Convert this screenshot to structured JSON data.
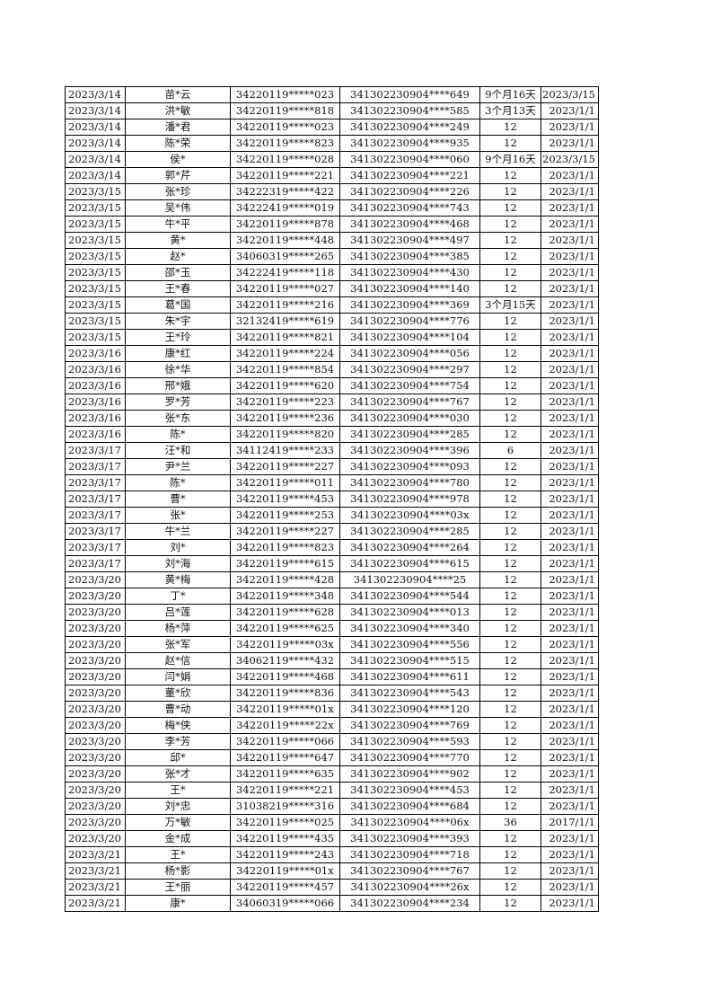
{
  "rows": [
    [
      "2023/3/14",
      "苗*云",
      "34220119*****023",
      "341302230904****649",
      "9个月16天",
      "2023/3/15"
    ],
    [
      "2023/3/14",
      "洪*敏",
      "34220119*****818",
      "341302230904****585",
      "3个月13天",
      "2023/1/1"
    ],
    [
      "2023/3/14",
      "潘*君",
      "34220119*****023",
      "341302230904****249",
      "12",
      "2023/1/1"
    ],
    [
      "2023/3/14",
      "陈*荣",
      "34220119*****823",
      "341302230904****935",
      "12",
      "2023/1/1"
    ],
    [
      "2023/3/14",
      "侯*",
      "34220119*****028",
      "341302230904****060",
      "9个月16天",
      "2023/3/15"
    ],
    [
      "2023/3/14",
      "郭*芹",
      "34220119*****221",
      "341302230904****221",
      "12",
      "2023/1/1"
    ],
    [
      "2023/3/15",
      "张*珍",
      "34222319*****422",
      "341302230904****226",
      "12",
      "2023/1/1"
    ],
    [
      "2023/3/15",
      "吴*伟",
      "34222419*****019",
      "341302230904****743",
      "12",
      "2023/1/1"
    ],
    [
      "2023/3/15",
      "牛*平",
      "34220119*****878",
      "341302230904****468",
      "12",
      "2023/1/1"
    ],
    [
      "2023/3/15",
      "黄*",
      "34220119*****448",
      "341302230904****497",
      "12",
      "2023/1/1"
    ],
    [
      "2023/3/15",
      "赵*",
      "34060319*****265",
      "341302230904****385",
      "12",
      "2023/1/1"
    ],
    [
      "2023/3/15",
      "邵*玉",
      "34222419*****118",
      "341302230904****430",
      "12",
      "2023/1/1"
    ],
    [
      "2023/3/15",
      "王*春",
      "34220119*****027",
      "341302230904****140",
      "12",
      "2023/1/1"
    ],
    [
      "2023/3/15",
      "葛*国",
      "34220119*****216",
      "341302230904****369",
      "3个月15天",
      "2023/1/1"
    ],
    [
      "2023/3/15",
      "朱*宇",
      "32132419*****619",
      "341302230904****776",
      "12",
      "2023/1/1"
    ],
    [
      "2023/3/15",
      "王*玲",
      "34220119*****821",
      "341302230904****104",
      "12",
      "2023/1/1"
    ],
    [
      "2023/3/16",
      "康*红",
      "34220119*****224",
      "341302230904****056",
      "12",
      "2023/1/1"
    ],
    [
      "2023/3/16",
      "徐*华",
      "34220119*****854",
      "341302230904****297",
      "12",
      "2023/1/1"
    ],
    [
      "2023/3/16",
      "邢*娥",
      "34220119*****620",
      "341302230904****754",
      "12",
      "2023/1/1"
    ],
    [
      "2023/3/16",
      "罗*芳",
      "34220119*****223",
      "341302230904****767",
      "12",
      "2023/1/1"
    ],
    [
      "2023/3/16",
      "张*东",
      "34220119*****236",
      "341302230904****030",
      "12",
      "2023/1/1"
    ],
    [
      "2023/3/16",
      "陈*",
      "34220119*****820",
      "341302230904****285",
      "12",
      "2023/1/1"
    ],
    [
      "2023/3/17",
      "汪*和",
      "34112419*****233",
      "341302230904****396",
      "6",
      "2023/1/1"
    ],
    [
      "2023/3/17",
      "尹*兰",
      "34220119*****227",
      "341302230904****093",
      "12",
      "2023/1/1"
    ],
    [
      "2023/3/17",
      "陈*",
      "34220119*****011",
      "341302230904****780",
      "12",
      "2023/1/1"
    ],
    [
      "2023/3/17",
      "曹*",
      "34220119*****453",
      "341302230904****978",
      "12",
      "2023/1/1"
    ],
    [
      "2023/3/17",
      "张*",
      "34220119*****253",
      "341302230904****03x",
      "12",
      "2023/1/1"
    ],
    [
      "2023/3/17",
      "牛*兰",
      "34220119*****227",
      "341302230904****285",
      "12",
      "2023/1/1"
    ],
    [
      "2023/3/17",
      "刘*",
      "34220119*****823",
      "341302230904****264",
      "12",
      "2023/1/1"
    ],
    [
      "2023/3/17",
      "刘*海",
      "34220119*****615",
      "341302230904****615",
      "12",
      "2023/1/1"
    ],
    [
      "2023/3/20",
      "黄*梅",
      "34220119*****428",
      "341302230904****25",
      "12",
      "2023/1/1"
    ],
    [
      "2023/3/20",
      "丁*",
      "34220119*****348",
      "341302230904****544",
      "12",
      "2023/1/1"
    ],
    [
      "2023/3/20",
      "吕*莲",
      "34220119*****628",
      "341302230904****013",
      "12",
      "2023/1/1"
    ],
    [
      "2023/3/20",
      "杨*萍",
      "34220119*****625",
      "341302230904****340",
      "12",
      "2023/1/1"
    ],
    [
      "2023/3/20",
      "张*军",
      "34220119*****03x",
      "341302230904****556",
      "12",
      "2023/1/1"
    ],
    [
      "2023/3/20",
      "赵*信",
      "34062119*****432",
      "341302230904****515",
      "12",
      "2023/1/1"
    ],
    [
      "2023/3/20",
      "闫*娟",
      "34220119*****468",
      "341302230904****611",
      "12",
      "2023/1/1"
    ],
    [
      "2023/3/20",
      "董*欣",
      "34220119*****836",
      "341302230904****543",
      "12",
      "2023/1/1"
    ],
    [
      "2023/3/20",
      "曹*动",
      "34220119*****01x",
      "341302230904****120",
      "12",
      "2023/1/1"
    ],
    [
      "2023/3/20",
      "梅*侠",
      "34220119*****22x",
      "341302230904****769",
      "12",
      "2023/1/1"
    ],
    [
      "2023/3/20",
      "李*芳",
      "34220119*****066",
      "341302230904****593",
      "12",
      "2023/1/1"
    ],
    [
      "2023/3/20",
      "邱*",
      "34220119*****647",
      "341302230904****770",
      "12",
      "2023/1/1"
    ],
    [
      "2023/3/20",
      "张*才",
      "34220119*****635",
      "341302230904****902",
      "12",
      "2023/1/1"
    ],
    [
      "2023/3/20",
      "王*",
      "34220119*****221",
      "341302230904****453",
      "12",
      "2023/1/1"
    ],
    [
      "2023/3/20",
      "刘*忠",
      "31038219*****316",
      "341302230904****684",
      "12",
      "2023/1/1"
    ],
    [
      "2023/3/20",
      "万*敏",
      "34220119*****025",
      "341302230904****06x",
      "36",
      "2017/1/1"
    ],
    [
      "2023/3/20",
      "金*成",
      "34220119*****435",
      "341302230904****393",
      "12",
      "2023/1/1"
    ],
    [
      "2023/3/21",
      "王*",
      "34220119*****243",
      "341302230904****718",
      "12",
      "2023/1/1"
    ],
    [
      "2023/3/21",
      "杨*影",
      "34220119*****01x",
      "341302230904****767",
      "12",
      "2023/1/1"
    ],
    [
      "2023/3/21",
      "王*丽",
      "34220119*****457",
      "341302230904****26x",
      "12",
      "2023/1/1"
    ],
    [
      "2023/3/21",
      "康*",
      "34060319*****066",
      "341302230904****234",
      "12",
      "2023/1/1"
    ]
  ]
}
